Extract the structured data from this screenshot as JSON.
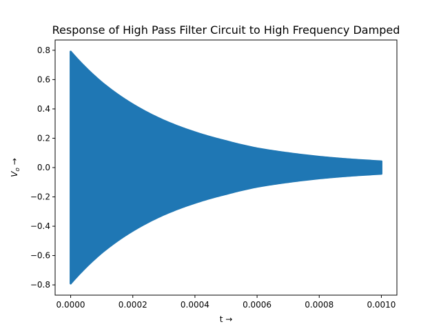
{
  "chart_data": {
    "type": "line",
    "title": "Response of High Pass Filter Circuit to High Frequency Damped",
    "xlabel": "t →",
    "ylabel_main": "V",
    "ylabel_sub": "o",
    "ylabel_arrow": " →",
    "xlim": [
      -5e-05,
      0.00105
    ],
    "ylim": [
      -0.87,
      0.87
    ],
    "x_ticks": [
      {
        "value": 0.0,
        "label": "0.0000"
      },
      {
        "value": 0.0002,
        "label": "0.0002"
      },
      {
        "value": 0.0004,
        "label": "0.0004"
      },
      {
        "value": 0.0006,
        "label": "0.0006"
      },
      {
        "value": 0.0008,
        "label": "0.0008"
      },
      {
        "value": 0.001,
        "label": "0.0010"
      }
    ],
    "y_ticks": [
      {
        "value": 0.8,
        "label": "0.8"
      },
      {
        "value": 0.6,
        "label": "0.6"
      },
      {
        "value": 0.4,
        "label": "0.4"
      },
      {
        "value": 0.2,
        "label": "0.2"
      },
      {
        "value": 0.0,
        "label": "0.0"
      },
      {
        "value": -0.2,
        "label": "−0.2"
      },
      {
        "value": -0.4,
        "label": "−0.4"
      },
      {
        "value": -0.6,
        "label": "−0.6"
      },
      {
        "value": -0.8,
        "label": "−0.8"
      }
    ],
    "grid": false,
    "series": [
      {
        "color": "#1f77b4",
        "x_start": 0.0,
        "x_end": 0.001,
        "envelope": {
          "x": [
            0.0,
            0.0001,
            0.0002,
            0.0003,
            0.0004,
            0.0005,
            0.0006,
            0.0007,
            0.0008,
            0.0009,
            0.001
          ],
          "amplitude": [
            0.79,
            0.58,
            0.43,
            0.32,
            0.24,
            0.18,
            0.13,
            0.098,
            0.073,
            0.055,
            0.042
          ]
        }
      }
    ]
  }
}
